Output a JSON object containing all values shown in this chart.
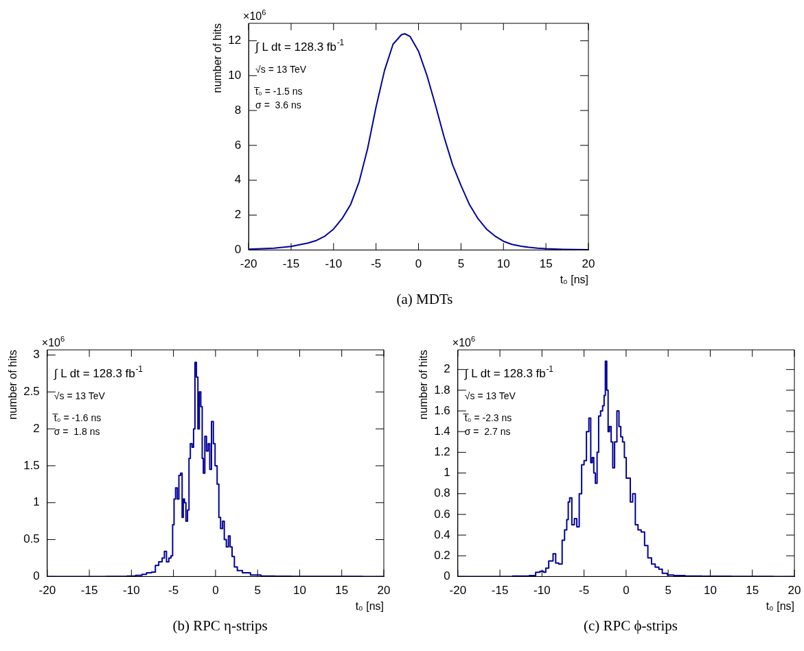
{
  "chart_data": [
    {
      "type": "line",
      "title": "(a) MDTs",
      "xlabel": "t₀ [ns]",
      "ylabel": "number of hits",
      "annotations": [
        "×10$^{6}$",
        "∫ L dt = 128.3 fb$^{-1}$",
        "√s = 13 TeV",
        "t̅₀ = -1.5 ns",
        "σ =  3.6 ns"
      ],
      "color": "#000099",
      "xlim": [
        -20,
        20
      ],
      "xticks": [
        -20,
        -15,
        -10,
        -5,
        0,
        5,
        10,
        15,
        20
      ],
      "ylim": [
        0,
        13
      ],
      "yticks": [
        0,
        2,
        4,
        6,
        8,
        10,
        12
      ],
      "x": [
        -20,
        -17,
        -15,
        -13,
        -12,
        -11,
        -10,
        -9,
        -8,
        -7,
        -6,
        -5,
        -4,
        -3,
        -2,
        -1.6,
        -1,
        0,
        1,
        2,
        3,
        4,
        5,
        6,
        7,
        8,
        9,
        10,
        11,
        12,
        13,
        14,
        15,
        17,
        20
      ],
      "values": [
        0.05,
        0.1,
        0.2,
        0.4,
        0.55,
        0.8,
        1.2,
        1.8,
        2.6,
        3.9,
        5.8,
        8.2,
        10.3,
        11.8,
        12.35,
        12.4,
        12.25,
        11.4,
        10.0,
        8.3,
        6.5,
        4.9,
        3.7,
        2.6,
        1.8,
        1.2,
        0.8,
        0.5,
        0.32,
        0.22,
        0.15,
        0.1,
        0.07,
        0.04,
        0.02
      ]
    },
    {
      "type": "step",
      "title": "(b) RPC η-strips",
      "xlabel": "t₀ [ns]",
      "ylabel": "number of hits",
      "annotations": [
        "×10$^{6}$",
        "∫ L dt = 128.3 fb$^{-1}$",
        "√s = 13 TeV",
        "t̅₀ = -1.6 ns",
        "σ =  1.8 ns"
      ],
      "color": "#000099",
      "xlim": [
        -20,
        20
      ],
      "xticks": [
        -20,
        -15,
        -10,
        -5,
        0,
        5,
        10,
        15,
        20
      ],
      "ylim": [
        0,
        3.07
      ],
      "yticks": [
        0,
        0.5,
        1,
        1.5,
        2,
        2.5,
        3
      ],
      "x": [
        -20,
        -15,
        -11,
        -10,
        -9,
        -8.5,
        -7.9,
        -7.3,
        -7.0,
        -6.5,
        -6.2,
        -5.96,
        -5.7,
        -5.4,
        -5.2,
        -5.0,
        -4.86,
        -4.64,
        -4.45,
        -4.26,
        -4.04,
        -3.9,
        -3.77,
        -3.6,
        -3.44,
        -3.22,
        -3.09,
        -2.9,
        -2.68,
        -2.54,
        -2.35,
        -2.19,
        -2.0,
        -1.86,
        -1.64,
        -1.53,
        -1.37,
        -1.17,
        -0.98,
        -0.77,
        -0.6,
        -0.36,
        -0.16,
        0.05,
        0.33,
        0.46,
        0.74,
        0.93,
        1.15,
        1.42,
        1.64,
        1.83,
        2.1,
        2.38,
        2.8,
        3.6,
        4.7,
        6.1,
        8,
        10,
        15,
        20
      ],
      "values": [
        0,
        0,
        0.002,
        0.005,
        0.015,
        0.03,
        0.05,
        0.06,
        0.15,
        0.2,
        0.25,
        0.34,
        0.2,
        0.25,
        0.28,
        0.7,
        1.05,
        1.2,
        1.05,
        1.37,
        1.4,
        0.8,
        1.05,
        1.0,
        0.75,
        0.9,
        1.6,
        1.8,
        1.75,
        2.0,
        2.9,
        2.7,
        2.0,
        2.5,
        2.3,
        1.6,
        1.4,
        1.9,
        1.7,
        1.8,
        1.45,
        2.1,
        1.8,
        1.5,
        1.25,
        0.8,
        0.65,
        0.75,
        0.5,
        0.4,
        0.55,
        0.4,
        0.27,
        0.13,
        0.08,
        0.05,
        0.02,
        0.005,
        0.003,
        0.002,
        0.001,
        0
      ]
    },
    {
      "type": "step",
      "title": "(c) RPC ϕ-strips",
      "xlabel": "t₀ [ns]",
      "ylabel": "number of hits",
      "annotations": [
        "×10$^{6}$",
        "∫ L dt = 128.3 fb$^{-1}$",
        "√s = 13 TeV",
        "t̅₀ = -2.3 ns",
        "σ =  2.7 ns"
      ],
      "color": "#000099",
      "xlim": [
        -20,
        20
      ],
      "xticks": [
        -20,
        -15,
        -10,
        -5,
        0,
        5,
        10,
        15,
        20
      ],
      "ylim": [
        0,
        2.19
      ],
      "yticks": [
        0,
        0.2,
        0.4,
        0.6,
        0.8,
        1,
        1.2,
        1.4,
        1.6,
        1.8,
        2
      ],
      "x": [
        -20,
        -15,
        -12,
        -11,
        -10.5,
        -10,
        -9.6,
        -9.5,
        -8.9,
        -8.47,
        -8.27,
        -7.75,
        -7.46,
        -7.17,
        -6.94,
        -6.82,
        -6.6,
        -6.3,
        -6.0,
        -5.72,
        -5.43,
        -5.14,
        -4.86,
        -4.57,
        -4.28,
        -4.13,
        -3.93,
        -3.76,
        -3.55,
        -3.35,
        -3.18,
        -2.89,
        -2.69,
        -2.54,
        -2.4,
        -2.2,
        -2.08,
        -1.88,
        -1.68,
        -1.5,
        -1.24,
        -0.95,
        -0.75,
        -0.52,
        -0.32,
        -0.09,
        0.12,
        0.35,
        0.64,
        0.92,
        1.27,
        1.56,
        2.02,
        2.37,
        2.8,
        3.24,
        3.67,
        4.1,
        4.5,
        5.3,
        6,
        8,
        10,
        15,
        20
      ],
      "values": [
        0,
        0,
        0.005,
        0.01,
        0.04,
        0.05,
        0.04,
        0.08,
        0.15,
        0.22,
        0.13,
        0.12,
        0.35,
        0.45,
        0.55,
        0.72,
        0.76,
        0.5,
        0.56,
        0.48,
        0.8,
        1.08,
        1.12,
        1.4,
        1.53,
        1.1,
        1.15,
        1.0,
        0.9,
        1.2,
        1.55,
        1.6,
        1.65,
        1.75,
        2.08,
        1.8,
        1.4,
        1.45,
        1.3,
        1.05,
        1.3,
        1.6,
        1.45,
        1.35,
        1.3,
        1.15,
        0.95,
        0.95,
        0.72,
        0.8,
        0.5,
        0.45,
        0.43,
        0.3,
        0.18,
        0.12,
        0.09,
        0.07,
        0.03,
        0.015,
        0.01,
        0.005,
        0.002,
        0.001,
        0
      ]
    }
  ]
}
